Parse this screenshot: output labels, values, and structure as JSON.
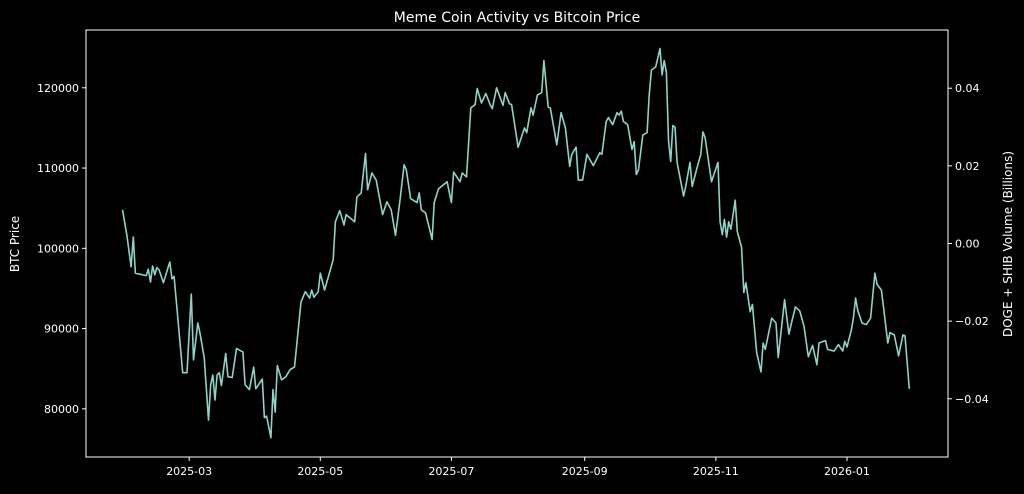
{
  "chart_data": {
    "type": "line",
    "title": "Meme Coin Activity vs Bitcoin Price",
    "xlabel": "",
    "ylabel": "BTC Price",
    "y2label": "DOGE + SHIB Volume (Billions)",
    "xlim": [
      "2025-01-12",
      "2026-02-17"
    ],
    "ylim": [
      74000,
      127200
    ],
    "y2lim": [
      -0.055,
      0.055
    ],
    "grid": false,
    "background": "#000000",
    "line_color": "#8dd3c7",
    "axis_color": "#ffffff",
    "xticks": [
      {
        "date": "2025-03-01",
        "label": "2025-03"
      },
      {
        "date": "2025-05-01",
        "label": "2025-05"
      },
      {
        "date": "2025-07-01",
        "label": "2025-07"
      },
      {
        "date": "2025-09-01",
        "label": "2025-09"
      },
      {
        "date": "2025-11-01",
        "label": "2025-11"
      },
      {
        "date": "2026-01-01",
        "label": "2026-01"
      }
    ],
    "yticks": [
      {
        "value": 80000,
        "label": "80000"
      },
      {
        "value": 90000,
        "label": "90000"
      },
      {
        "value": 100000,
        "label": "100000"
      },
      {
        "value": 110000,
        "label": "110000"
      },
      {
        "value": 120000,
        "label": "120000"
      }
    ],
    "y2ticks": [
      {
        "value": -0.04,
        "label": "−0.04"
      },
      {
        "value": -0.02,
        "label": "−0.02"
      },
      {
        "value": 0.0,
        "label": "0.00"
      },
      {
        "value": 0.02,
        "label": "0.02"
      },
      {
        "value": 0.04,
        "label": "0.04"
      }
    ],
    "series": [
      {
        "axis": "left",
        "x": [
          "2025-01-29",
          "2025-01-31",
          "2025-02-02",
          "2025-02-03",
          "2025-02-04",
          "2025-02-09",
          "2025-02-10",
          "2025-02-11",
          "2025-02-12",
          "2025-02-13",
          "2025-02-14",
          "2025-02-15",
          "2025-02-17",
          "2025-02-20",
          "2025-02-21",
          "2025-02-22",
          "2025-02-26",
          "2025-02-28",
          "2025-03-02",
          "2025-03-03",
          "2025-03-05",
          "2025-03-06",
          "2025-03-08",
          "2025-03-10",
          "2025-03-11",
          "2025-03-12",
          "2025-03-13",
          "2025-03-14",
          "2025-03-15",
          "2025-03-16",
          "2025-03-18",
          "2025-03-19",
          "2025-03-21",
          "2025-03-23",
          "2025-03-26",
          "2025-03-27",
          "2025-03-29",
          "2025-03-31",
          "2025-04-01",
          "2025-04-04",
          "2025-04-05",
          "2025-04-06",
          "2025-04-08",
          "2025-04-09",
          "2025-04-10",
          "2025-04-11",
          "2025-04-13",
          "2025-04-15",
          "2025-04-17",
          "2025-04-19",
          "2025-04-22",
          "2025-04-24",
          "2025-04-26",
          "2025-04-27",
          "2025-04-28",
          "2025-04-30",
          "2025-05-01",
          "2025-05-03",
          "2025-05-05",
          "2025-05-07",
          "2025-05-08",
          "2025-05-10",
          "2025-05-12",
          "2025-05-13",
          "2025-05-17",
          "2025-05-18",
          "2025-05-20",
          "2025-05-22",
          "2025-05-23",
          "2025-05-25",
          "2025-05-27",
          "2025-05-30",
          "2025-06-01",
          "2025-06-03",
          "2025-06-05",
          "2025-06-07",
          "2025-06-09",
          "2025-06-10",
          "2025-06-12",
          "2025-06-15",
          "2025-06-16",
          "2025-06-17",
          "2025-06-19",
          "2025-06-22",
          "2025-06-23",
          "2025-06-25",
          "2025-06-29",
          "2025-07-01",
          "2025-07-02",
          "2025-07-05",
          "2025-07-06",
          "2025-07-08",
          "2025-07-10",
          "2025-07-12",
          "2025-07-13",
          "2025-07-15",
          "2025-07-17",
          "2025-07-19",
          "2025-07-20",
          "2025-07-22",
          "2025-07-25",
          "2025-07-26",
          "2025-07-28",
          "2025-07-29",
          "2025-08-01",
          "2025-08-04",
          "2025-08-05",
          "2025-08-07",
          "2025-08-08",
          "2025-08-10",
          "2025-08-12",
          "2025-08-13",
          "2025-08-15",
          "2025-08-16",
          "2025-08-19",
          "2025-08-21",
          "2025-08-23",
          "2025-08-25",
          "2025-08-26",
          "2025-08-28",
          "2025-08-29",
          "2025-08-31",
          "2025-09-02",
          "2025-09-05",
          "2025-09-08",
          "2025-09-09",
          "2025-09-11",
          "2025-09-12",
          "2025-09-14",
          "2025-09-16",
          "2025-09-17",
          "2025-09-18",
          "2025-09-19",
          "2025-09-21",
          "2025-09-23",
          "2025-09-24",
          "2025-09-25",
          "2025-09-26",
          "2025-09-28",
          "2025-09-30",
          "2025-10-01",
          "2025-10-02",
          "2025-10-04",
          "2025-10-06",
          "2025-10-07",
          "2025-10-08",
          "2025-10-09",
          "2025-10-10",
          "2025-10-11",
          "2025-10-12",
          "2025-10-13",
          "2025-10-14",
          "2025-10-17",
          "2025-10-18",
          "2025-10-20",
          "2025-10-21",
          "2025-10-23",
          "2025-10-25",
          "2025-10-26",
          "2025-10-27",
          "2025-10-30",
          "2025-11-02",
          "2025-11-03",
          "2025-11-04",
          "2025-11-05",
          "2025-11-06",
          "2025-11-07",
          "2025-11-08",
          "2025-11-10",
          "2025-11-11",
          "2025-11-13",
          "2025-11-14",
          "2025-11-15",
          "2025-11-17",
          "2025-11-18",
          "2025-11-20",
          "2025-11-22",
          "2025-11-23",
          "2025-11-24",
          "2025-11-27",
          "2025-11-29",
          "2025-11-30",
          "2025-12-03",
          "2025-12-05",
          "2025-12-06",
          "2025-12-08",
          "2025-12-10",
          "2025-12-12",
          "2025-12-14",
          "2025-12-16",
          "2025-12-18",
          "2025-12-19",
          "2025-12-22",
          "2025-12-23",
          "2025-12-26",
          "2025-12-28",
          "2025-12-30",
          "2025-12-31",
          "2026-01-01",
          "2026-01-03",
          "2026-01-04",
          "2026-01-05",
          "2026-01-06",
          "2026-01-08",
          "2026-01-10",
          "2026-01-12",
          "2026-01-14",
          "2026-01-15",
          "2026-01-17",
          "2026-01-18",
          "2026-01-20",
          "2026-01-21",
          "2026-01-23",
          "2026-01-25",
          "2026-01-27",
          "2026-01-28",
          "2026-01-30"
        ],
        "values": [
          104800,
          101700,
          97700,
          101400,
          96900,
          96600,
          97400,
          95800,
          97800,
          96700,
          97600,
          97300,
          95700,
          98300,
          96200,
          96500,
          84500,
          84500,
          94300,
          86100,
          90700,
          89500,
          86400,
          78600,
          83000,
          84200,
          81100,
          84200,
          84500,
          82900,
          86900,
          84000,
          83900,
          87500,
          87100,
          83000,
          82400,
          85200,
          82500,
          83700,
          78900,
          79100,
          76400,
          82400,
          79600,
          85400,
          83600,
          84000,
          84900,
          85200,
          93300,
          94600,
          93800,
          94800,
          93900,
          94600,
          96900,
          94800,
          96700,
          98600,
          103300,
          104700,
          102900,
          104200,
          103300,
          106400,
          106900,
          111800,
          107300,
          109400,
          108500,
          104200,
          105800,
          104800,
          101600,
          105800,
          110400,
          109800,
          106200,
          105700,
          106900,
          104800,
          104400,
          101100,
          105700,
          107400,
          108300,
          105700,
          109500,
          108300,
          109400,
          108900,
          117500,
          117900,
          119900,
          118100,
          119300,
          117900,
          117400,
          120000,
          117800,
          119400,
          118000,
          117900,
          112600,
          115000,
          114400,
          117500,
          116600,
          119100,
          119400,
          123400,
          117600,
          117500,
          112900,
          116900,
          115000,
          110200,
          111700,
          112600,
          108500,
          108500,
          111700,
          110300,
          111900,
          111700,
          115800,
          116300,
          115400,
          116900,
          116600,
          117100,
          115800,
          115400,
          112300,
          113300,
          109200,
          109800,
          114100,
          114400,
          119100,
          122200,
          122600,
          124900,
          121600,
          123400,
          121900,
          113500,
          110800,
          115300,
          115100,
          110700,
          106500,
          107700,
          110700,
          107700,
          109800,
          111700,
          114500,
          113800,
          108300,
          110700,
          103300,
          101700,
          103600,
          101400,
          103300,
          102400,
          106000,
          102100,
          100100,
          94500,
          95700,
          92100,
          93000,
          87000,
          84600,
          88200,
          87400,
          91300,
          90700,
          86400,
          93600,
          89300,
          90500,
          92700,
          92200,
          90300,
          86500,
          87900,
          85500,
          88200,
          88500,
          87400,
          87200,
          88000,
          87200,
          88400,
          87700,
          89800,
          91300,
          93800,
          92300,
          90700,
          90500,
          91300,
          96900,
          95500,
          94800,
          92700,
          88200,
          89500,
          89200,
          86600,
          89200,
          89100,
          82500
        ]
      }
    ]
  }
}
